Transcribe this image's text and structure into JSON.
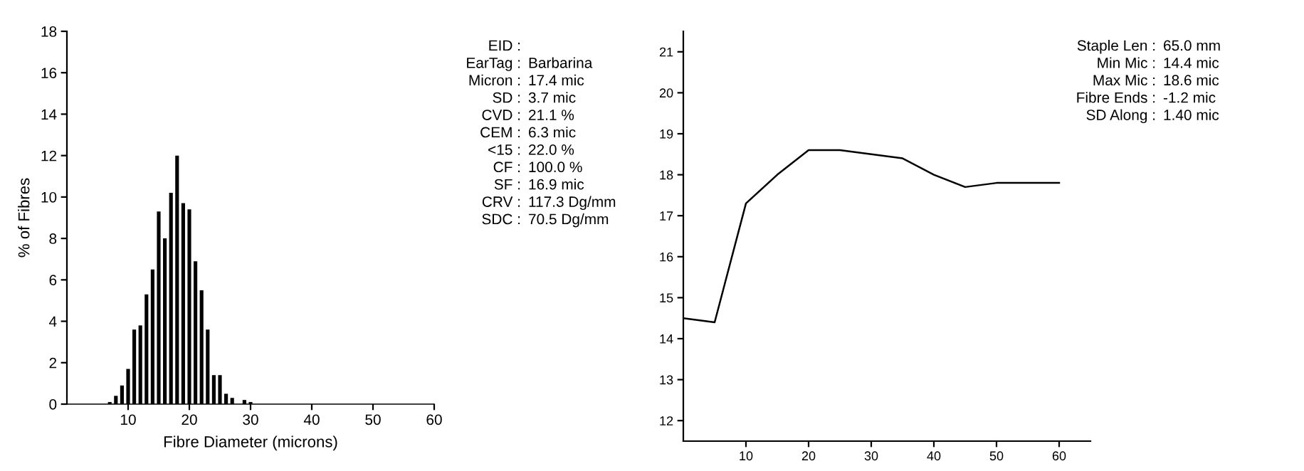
{
  "chart_data": [
    {
      "type": "bar",
      "xlabel": "Fibre Diameter (microns)",
      "ylabel": "% of Fibres",
      "color": "#000000",
      "x": [
        7,
        8,
        9,
        10,
        11,
        12,
        13,
        14,
        15,
        16,
        17,
        18,
        19,
        20,
        21,
        22,
        23,
        24,
        25,
        26,
        27,
        28,
        29,
        30
      ],
      "values": [
        0.1,
        0.4,
        0.9,
        1.7,
        3.6,
        3.8,
        5.3,
        6.5,
        9.3,
        8.0,
        10.2,
        12.0,
        9.7,
        9.4,
        6.9,
        5.5,
        3.6,
        1.4,
        1.4,
        0.5,
        0.3,
        0,
        0.2,
        0.1
      ],
      "xlim": [
        0,
        60
      ],
      "xticks": [
        10,
        20,
        30,
        40,
        50,
        60
      ],
      "ylim": [
        0,
        18
      ],
      "yticks": [
        0,
        2,
        4,
        6,
        8,
        10,
        12,
        14,
        16,
        18
      ],
      "grid": false,
      "legend": false
    },
    {
      "type": "other",
      "annotations": [
        "EID :",
        "EarTag : Barbarina",
        "Micron : 17.4 mic",
        "SD : 3.7 mic",
        "CVD : 21.1 %",
        "CEM : 6.3 mic",
        "<15 : 22.0 %",
        "CF : 100.0 %",
        "SF : 16.9 mic",
        "CRV : 117.3 Dg/mm",
        "SDC : 70.5 Dg/mm"
      ]
    },
    {
      "type": "line",
      "color": "#000000",
      "x": [
        0,
        5,
        10,
        15,
        20,
        25,
        30,
        35,
        40,
        45,
        50,
        55,
        60
      ],
      "values": [
        14.5,
        14.4,
        17.3,
        18.0,
        18.6,
        18.6,
        18.5,
        18.4,
        18.0,
        17.7,
        17.8,
        17.8,
        17.8
      ],
      "xlim": [
        0,
        65
      ],
      "xticks": [
        10,
        20,
        30,
        40,
        50,
        60
      ],
      "ylim": [
        11.5,
        21.5
      ],
      "yticks": [
        12,
        13,
        14,
        15,
        16,
        17,
        18,
        19,
        20,
        21
      ],
      "grid": false,
      "legend": false,
      "marker": "none",
      "line_style": "solid"
    },
    {
      "type": "other",
      "annotations": [
        "Staple Len : 65.0 mm",
        "Min Mic : 14.4 mic",
        "Max Mic : 18.6 mic",
        "Fibre Ends : -1.2 mic",
        "SD Along : 1.40 mic"
      ]
    }
  ]
}
